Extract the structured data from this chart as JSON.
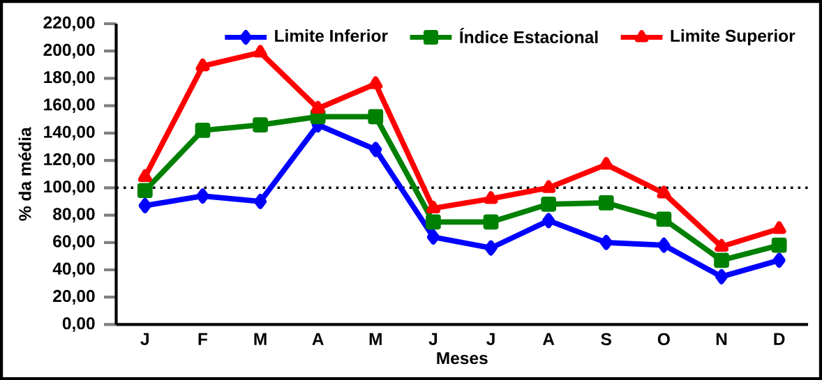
{
  "chart_data": {
    "type": "line",
    "xlabel": "Meses",
    "ylabel": "% da média",
    "categories": [
      "J",
      "F",
      "M",
      "A",
      "M",
      "J",
      "J",
      "A",
      "S",
      "O",
      "N",
      "D"
    ],
    "series": [
      {
        "name": "Limite Inferior",
        "color": "#0000ff",
        "marker": "diamond",
        "values": [
          87,
          94,
          90,
          146,
          128,
          64,
          56,
          76,
          60,
          58,
          35,
          47
        ]
      },
      {
        "name": "Índice Estacional",
        "color": "#008000",
        "marker": "square",
        "values": [
          98,
          142,
          146,
          152,
          152,
          75,
          75,
          88,
          89,
          77,
          47,
          58
        ]
      },
      {
        "name": "Limite Superior",
        "color": "#ff0000",
        "marker": "triangle",
        "values": [
          108,
          189,
          199,
          158,
          176,
          85,
          92,
          100,
          117,
          96,
          57,
          70
        ]
      }
    ],
    "ylim": [
      0,
      220
    ],
    "yticks": [
      {
        "value": 0,
        "label": "0,00"
      },
      {
        "value": 20,
        "label": "20,00"
      },
      {
        "value": 40,
        "label": "40,00"
      },
      {
        "value": 60,
        "label": "60,00"
      },
      {
        "value": 80,
        "label": "80,00"
      },
      {
        "value": 100,
        "label": "100,00"
      },
      {
        "value": 120,
        "label": "120,00"
      },
      {
        "value": 140,
        "label": "140,00"
      },
      {
        "value": 160,
        "label": "160,00"
      },
      {
        "value": 180,
        "label": "180,00"
      },
      {
        "value": 200,
        "label": "200,00"
      },
      {
        "value": 220,
        "label": "220,00"
      }
    ],
    "ref_lines": [
      {
        "axis": "y",
        "value": 100,
        "color": "#000000",
        "line_style": "dotted"
      }
    ],
    "legend": "top right",
    "grid": false,
    "line_style": "solid"
  }
}
